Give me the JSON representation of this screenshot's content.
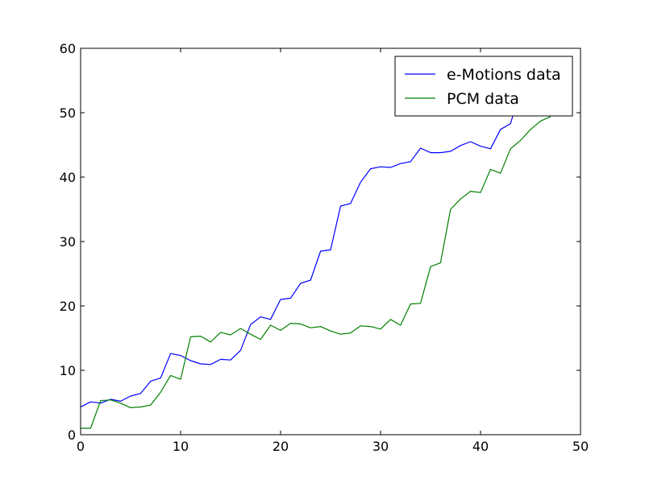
{
  "chart_data": {
    "type": "line",
    "title": "",
    "xlabel": "",
    "ylabel": "",
    "xlim": [
      0,
      50
    ],
    "ylim": [
      0,
      60
    ],
    "x_ticks": [
      0,
      10,
      20,
      30,
      40,
      50
    ],
    "y_ticks": [
      0,
      10,
      20,
      30,
      40,
      50,
      60
    ],
    "grid": false,
    "legend": {
      "placement": "top-right"
    },
    "series": [
      {
        "name": "e-Motions data",
        "color": "#0000ff",
        "x": [
          0,
          1,
          2,
          3,
          4,
          5,
          6,
          7,
          8,
          9,
          10,
          11,
          12,
          13,
          14,
          15,
          16,
          17,
          18,
          19,
          20,
          21,
          22,
          23,
          24,
          25,
          26,
          27,
          28,
          29,
          30,
          31,
          32,
          33,
          34,
          35,
          36,
          37,
          38,
          39,
          40,
          41,
          42,
          43,
          44
        ],
        "values": [
          4.3,
          5.1,
          4.9,
          5.5,
          5.2,
          6.0,
          6.4,
          8.3,
          8.8,
          12.6,
          12.3,
          11.5,
          11.0,
          10.9,
          11.7,
          11.6,
          13.1,
          17.1,
          18.3,
          17.9,
          21.0,
          21.2,
          23.5,
          24.0,
          28.5,
          28.7,
          35.5,
          35.9,
          39.2,
          41.3,
          41.6,
          41.5,
          42.1,
          42.4,
          44.5,
          43.8,
          43.8,
          44.0,
          44.9,
          45.5,
          44.8,
          44.4,
          47.4,
          48.3,
          53.5
        ]
      },
      {
        "name": "PCM data",
        "color": "#008000",
        "x": [
          0,
          1,
          2,
          3,
          4,
          5,
          6,
          7,
          8,
          9,
          10,
          11,
          12,
          13,
          14,
          15,
          16,
          17,
          18,
          19,
          20,
          21,
          22,
          23,
          24,
          25,
          26,
          27,
          28,
          29,
          30,
          31,
          32,
          33,
          34,
          35,
          36,
          37,
          38,
          39,
          40,
          41,
          42,
          43,
          44,
          45,
          46,
          47
        ],
        "values": [
          1.0,
          1.0,
          5.3,
          5.4,
          4.9,
          4.2,
          4.3,
          4.6,
          6.6,
          9.2,
          8.6,
          15.2,
          15.3,
          14.4,
          15.9,
          15.5,
          16.5,
          15.6,
          14.8,
          17.0,
          16.2,
          17.3,
          17.2,
          16.6,
          16.8,
          16.1,
          15.6,
          15.8,
          16.9,
          16.8,
          16.4,
          17.9,
          17.0,
          20.3,
          20.4,
          26.1,
          26.7,
          35.0,
          36.6,
          37.8,
          37.6,
          41.2,
          40.6,
          44.4,
          45.7,
          47.4,
          48.7,
          49.4
        ]
      }
    ]
  }
}
